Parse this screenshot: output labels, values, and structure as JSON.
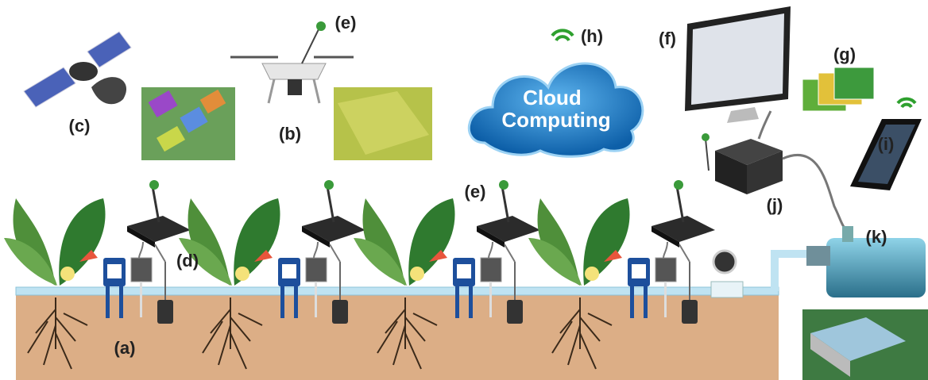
{
  "labels": [
    "(c)",
    "(e)",
    "(b)",
    "(h)",
    "(f)",
    "(g)",
    "(i)",
    "(j)",
    "(e)",
    "(d)",
    "(a)",
    "(k)"
  ],
  "cloud": {
    "lines": [
      "Cloud",
      "Computing"
    ]
  }
}
